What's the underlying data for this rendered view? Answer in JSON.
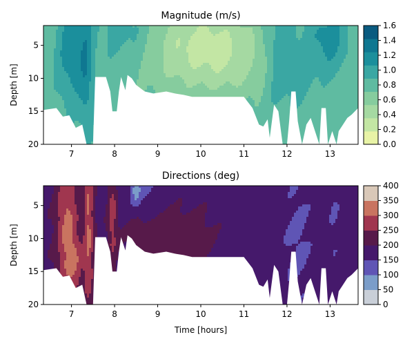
{
  "chart_data": [
    {
      "type": "heatmap",
      "title": "Magnitude (m/s)",
      "xlabel": "",
      "ylabel": "Depth [m]",
      "xlim": [
        6.35,
        13.65
      ],
      "ylim": [
        20,
        2
      ],
      "xticks": [
        7,
        8,
        9,
        10,
        11,
        12,
        13
      ],
      "yticks": [
        5,
        10,
        15,
        20
      ],
      "colorbar": {
        "ticks": [
          "0.0",
          "0.2",
          "0.4",
          "0.6",
          "0.8",
          "1.0",
          "1.2",
          "1.4",
          "1.6"
        ],
        "levels": [
          0.0,
          0.2,
          0.4,
          0.6,
          0.8,
          1.0,
          1.2,
          1.4,
          1.6
        ],
        "colors": [
          "#e8f3a6",
          "#c3e6a4",
          "#a5d9a2",
          "#86cc9e",
          "#5fbba1",
          "#3aa7a3",
          "#1b8f9c",
          "#0f7791",
          "#0a5b80"
        ]
      },
      "valid_bottom_depth": [
        [
          6.35,
          14.8
        ],
        [
          6.65,
          14.5
        ],
        [
          6.8,
          15.8
        ],
        [
          6.95,
          15.6
        ],
        [
          7.1,
          17.5
        ],
        [
          7.25,
          17.0
        ],
        [
          7.35,
          20
        ],
        [
          7.5,
          20
        ],
        [
          7.55,
          9.8
        ],
        [
          7.8,
          9.8
        ],
        [
          7.9,
          12.0
        ],
        [
          7.95,
          15.0
        ],
        [
          8.05,
          15.0
        ],
        [
          8.1,
          12.0
        ],
        [
          8.15,
          9.8
        ],
        [
          8.25,
          11.8
        ],
        [
          8.3,
          9.5
        ],
        [
          8.4,
          10.0
        ],
        [
          8.5,
          11.0
        ],
        [
          8.7,
          12.0
        ],
        [
          8.9,
          12.3
        ],
        [
          9.2,
          12.0
        ],
        [
          9.4,
          12.3
        ],
        [
          9.6,
          12.5
        ],
        [
          9.8,
          12.8
        ],
        [
          10.0,
          12.8
        ],
        [
          10.3,
          12.8
        ],
        [
          10.7,
          12.8
        ],
        [
          11.0,
          12.8
        ],
        [
          11.2,
          14.5
        ],
        [
          11.35,
          17.0
        ],
        [
          11.45,
          17.3
        ],
        [
          11.55,
          16.2
        ],
        [
          11.6,
          19.0
        ],
        [
          11.7,
          14.0
        ],
        [
          11.8,
          15.0
        ],
        [
          11.9,
          20
        ],
        [
          12.0,
          20
        ],
        [
          12.05,
          16.5
        ],
        [
          12.1,
          12.0
        ],
        [
          12.2,
          12.0
        ],
        [
          12.25,
          16.5
        ],
        [
          12.35,
          20
        ],
        [
          12.45,
          17.0
        ],
        [
          12.55,
          16.0
        ],
        [
          12.65,
          18.0
        ],
        [
          12.75,
          20
        ],
        [
          12.8,
          14.5
        ],
        [
          12.9,
          14.5
        ],
        [
          12.95,
          20
        ],
        [
          13.05,
          18.0
        ],
        [
          13.15,
          20
        ],
        [
          13.2,
          18.0
        ],
        [
          13.3,
          17.0
        ],
        [
          13.4,
          16.0
        ],
        [
          13.5,
          15.5
        ],
        [
          13.65,
          14.5
        ]
      ]
    },
    {
      "type": "heatmap",
      "title": "Directions (deg)",
      "xlabel": "Time [hours]",
      "ylabel": "Depth [m]",
      "xlim": [
        6.35,
        13.65
      ],
      "ylim": [
        20,
        2
      ],
      "xticks": [
        7,
        8,
        9,
        10,
        11,
        12,
        13
      ],
      "yticks": [
        5,
        10,
        15,
        20
      ],
      "colorbar": {
        "ticks": [
          "0",
          "50",
          "100",
          "150",
          "200",
          "250",
          "300",
          "350",
          "400"
        ],
        "levels": [
          0,
          50,
          100,
          150,
          200,
          250,
          300,
          350,
          400
        ],
        "colors": [
          "#c9cfd8",
          "#7b9dc9",
          "#5f55b5",
          "#45196b",
          "#571a4a",
          "#a0364f",
          "#c97460",
          "#d9c8b8"
        ]
      }
    }
  ]
}
